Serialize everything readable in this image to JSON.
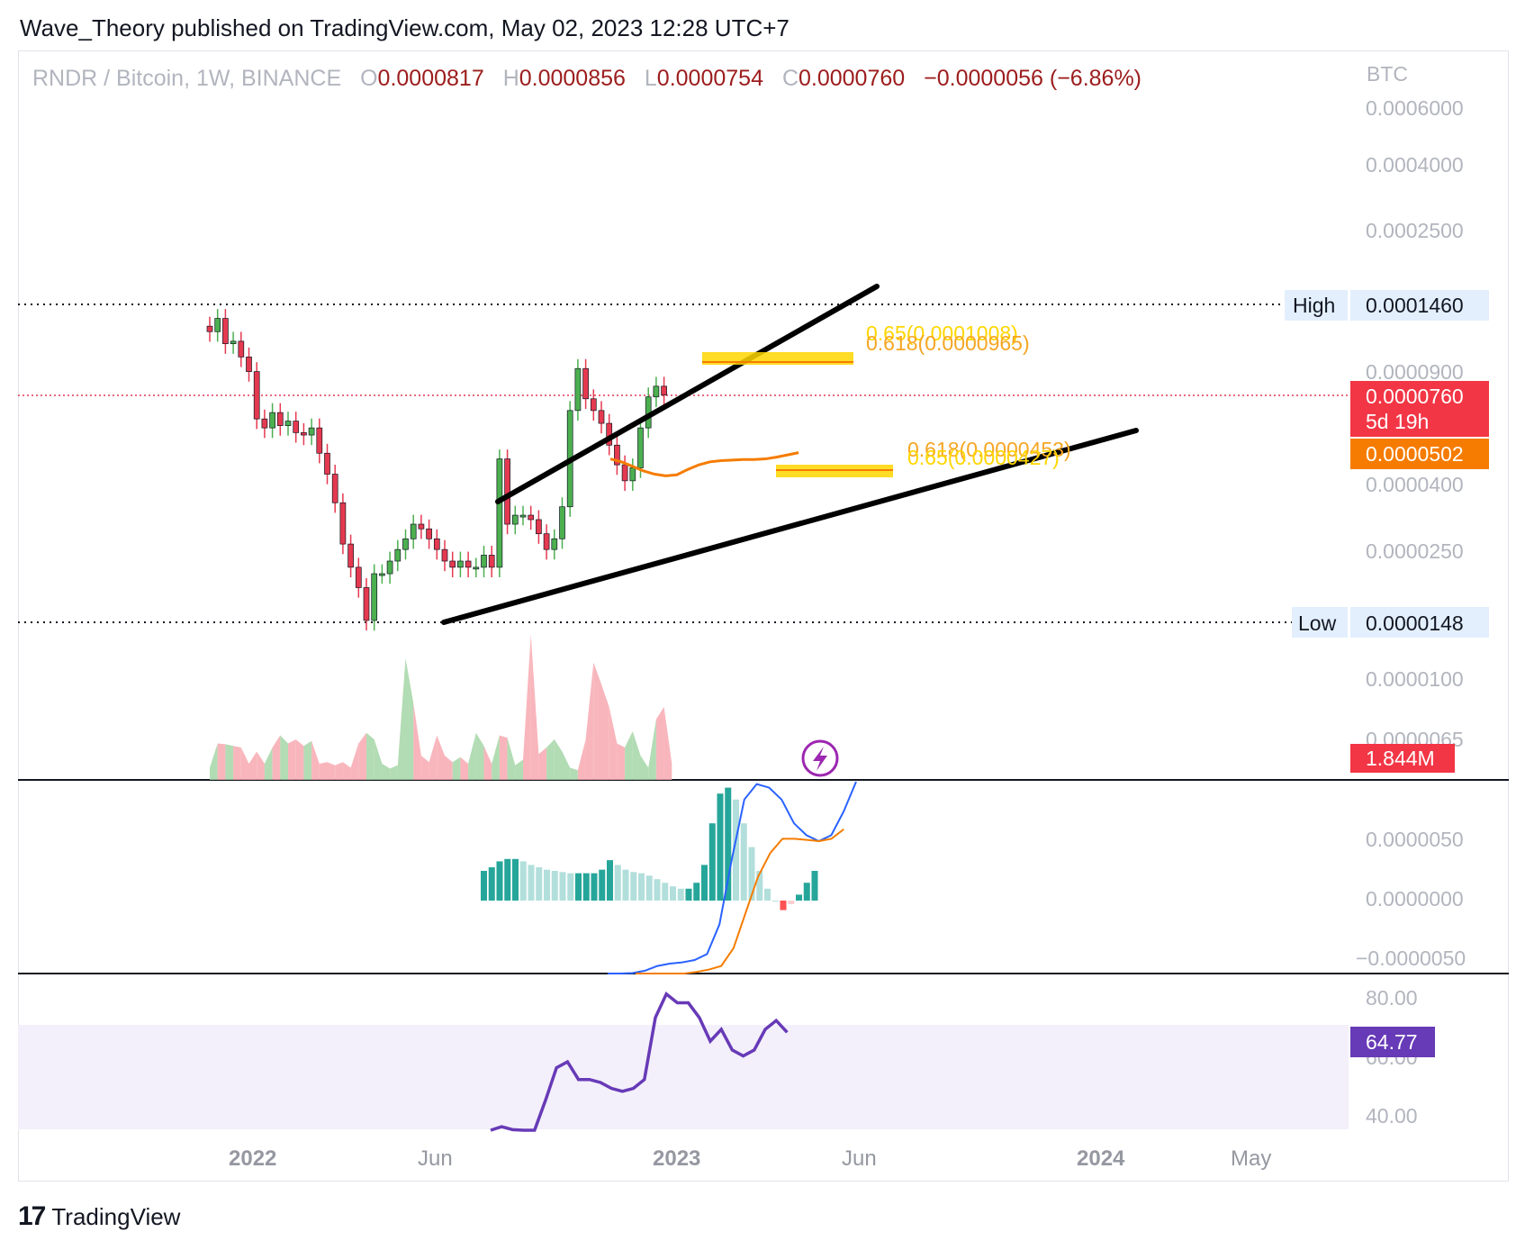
{
  "header": {
    "published": "Wave_Theory published on TradingView.com, May 02, 2023 12:28 UTC+7"
  },
  "legend": {
    "symbol": "RNDR / Bitcoin, 1W, BINANCE",
    "o_label": "O",
    "o_value": "0.0000817",
    "h_label": "H",
    "h_value": "0.0000856",
    "l_label": "L",
    "l_value": "0.0000754",
    "c_label": "C",
    "c_value": "0.0000760",
    "change": "−0.0000056 (−6.86%)"
  },
  "colors": {
    "up": "#26a69a",
    "down": "#ef5350",
    "candle_up": "#4caf50",
    "candle_down": "#e53950",
    "ma": "#f57c00",
    "macd": "#2962ff",
    "signal": "#f57c00",
    "rsi": "#673ab7",
    "fib": "#ffd600",
    "fib_text": "#f5a623"
  },
  "price_axis": {
    "unit": "BTC",
    "ticks": [
      "0.0006000",
      "0.0004000",
      "0.0002500",
      "0.0000900",
      "0.0000400",
      "0.0000250",
      "0.0000100",
      "0.0000065"
    ],
    "high_label": "High",
    "high_value": "0.0001460",
    "low_label": "Low",
    "low_value": "0.0000148",
    "last_price": "0.0000760",
    "countdown": "5d 19h",
    "ma_value": "0.0000502",
    "volume_value": "1.844M"
  },
  "fib_labels": {
    "top_a": "0.65(0.0001008)",
    "top_b": "0.618(0.0000965)",
    "bottom_a": "0.618(0.0000453)",
    "bottom_b": "0.65(0.0000427)"
  },
  "macd_axis": {
    "ticks": [
      "0.0000050",
      "0.0000000",
      "−0.0000050"
    ]
  },
  "rsi_axis": {
    "ticks": [
      "80.00",
      "60.00",
      "40.00"
    ],
    "value": "64.77"
  },
  "time_axis": {
    "labels": [
      "2022",
      "Jun",
      "2023",
      "Jun",
      "2024",
      "May"
    ]
  },
  "footer": {
    "logo": "17",
    "brand": "TradingView"
  },
  "chart_data": {
    "type": "candlestick",
    "title": "RNDR / Bitcoin, 1W, BINANCE",
    "y_scale": "log",
    "candles_close": [
      0.00012,
      0.000132,
      0.00011,
      0.000112,
      0.0001,
      9e-05,
      6.4e-05,
      6e-05,
      6.7e-05,
      6.1e-05,
      6.3e-05,
      5.8e-05,
      5.7e-05,
      6e-05,
      5e-05,
      4.3e-05,
      3.5e-05,
      2.6e-05,
      2.2e-05,
      1.9e-05,
      1.5e-05,
      2.1e-05,
      2.1e-05,
      2.3e-05,
      2.5e-05,
      2.7e-05,
      3e-05,
      2.9e-05,
      2.7e-05,
      2.5e-05,
      2.3e-05,
      2.2e-05,
      2.3e-05,
      2.2e-05,
      2.2e-05,
      2.4e-05,
      2.2e-05,
      4.8e-05,
      3e-05,
      3.2e-05,
      3.2e-05,
      3.1e-05,
      2.8e-05,
      2.5e-05,
      2.7e-05,
      3.4e-05,
      6.8e-05,
      9.2e-05,
      7.4e-05,
      6.8e-05,
      6.2e-05,
      5.3e-05,
      4.6e-05,
      4.1e-05,
      4.5e-05,
      6e-05,
      7.5e-05,
      8.1e-05,
      7.6e-05
    ],
    "ma_close": [
      4.8e-05,
      4.7e-05,
      4.55e-05,
      4.4e-05,
      4.3e-05,
      4.25e-05,
      4.28e-05,
      4.45e-05,
      4.6e-05,
      4.7e-05,
      4.74e-05,
      4.76e-05,
      4.78e-05,
      4.78e-05,
      4.8e-05,
      4.86e-05,
      4.94e-05,
      5.02e-05
    ],
    "volume_relative": [
      0.15,
      0.45,
      0.44,
      0.42,
      0.4,
      0.2,
      0.35,
      0.2,
      0.4,
      0.55,
      0.45,
      0.5,
      0.42,
      0.48,
      0.2,
      0.22,
      0.18,
      0.22,
      0.15,
      0.45,
      0.58,
      0.5,
      0.2,
      0.14,
      0.18,
      1.5,
      0.95,
      0.3,
      0.22,
      0.55,
      0.3,
      0.22,
      0.28,
      0.2,
      0.58,
      0.42,
      0.2,
      0.55,
      0.52,
      0.18,
      0.25,
      1.8,
      0.32,
      0.4,
      0.5,
      0.35,
      0.15,
      0.12,
      0.5,
      1.45,
      1.18,
      0.9,
      0.45,
      0.4,
      0.6,
      0.3,
      0.15,
      0.75,
      0.9,
      0.2
    ],
    "macd_histogram": [
      2.5e-06,
      2.8e-06,
      3.3e-06,
      3.5e-06,
      3.5e-06,
      3.3e-06,
      3e-06,
      2.8e-06,
      2.6e-06,
      2.5e-06,
      2.4e-06,
      2.3e-06,
      2.3e-06,
      2.3e-06,
      2.3e-06,
      2.6e-06,
      3.4e-06,
      3e-06,
      2.6e-06,
      2.4e-06,
      2.3e-06,
      2.1e-06,
      1.8e-06,
      1.5e-06,
      1.2e-06,
      1e-06,
      1e-06,
      1.5e-06,
      3e-06,
      6.5e-06,
      9e-06,
      9.5e-06,
      8.5e-06,
      6.5e-06,
      4.5e-06,
      2.5e-06,
      1e-06,
      0.0,
      -8e-07,
      -3e-07,
      5e-07,
      1.5e-06,
      2.5e-06
    ],
    "macd_line": [
      -8e-06,
      -6.5e-06,
      -6.1e-06,
      -5.9e-06,
      -5.5e-06,
      -5.3e-06,
      -5.2e-06,
      -5e-06,
      -4.5e-06,
      -2e-06,
      3.5e-06,
      8.5e-06,
      9.8e-06,
      9.5e-06,
      8.5e-06,
      6.5e-06,
      5.5e-06,
      5e-06,
      5.5e-06,
      7.5e-06,
      1e-05
    ],
    "signal_line": [
      -8e-06,
      -7.2e-06,
      -6.8e-06,
      -6.4e-06,
      -6.2e-06,
      -6e-06,
      -5.8e-06,
      -5.5e-06,
      -4e-06,
      -1e-06,
      2e-06,
      4e-06,
      5.2e-06,
      5.2e-06,
      5.1e-06,
      5e-06,
      5.2e-06,
      6e-06
    ],
    "rsi": [
      34,
      36,
      35,
      33,
      34,
      45,
      56,
      58,
      52,
      52,
      51,
      49,
      48,
      49,
      52,
      73,
      81,
      78,
      78,
      73,
      65,
      69,
      62,
      60,
      62,
      69,
      72,
      68
    ],
    "price_levels": {
      "High": 0.000146,
      "Low": 1.48e-05
    },
    "fib_levels": [
      {
        "ratio": 0.65,
        "price": 0.0001008
      },
      {
        "ratio": 0.618,
        "price": 9.65e-05
      },
      {
        "ratio": 0.618,
        "price": 4.53e-05
      },
      {
        "ratio": 0.65,
        "price": 4.27e-05
      }
    ]
  }
}
